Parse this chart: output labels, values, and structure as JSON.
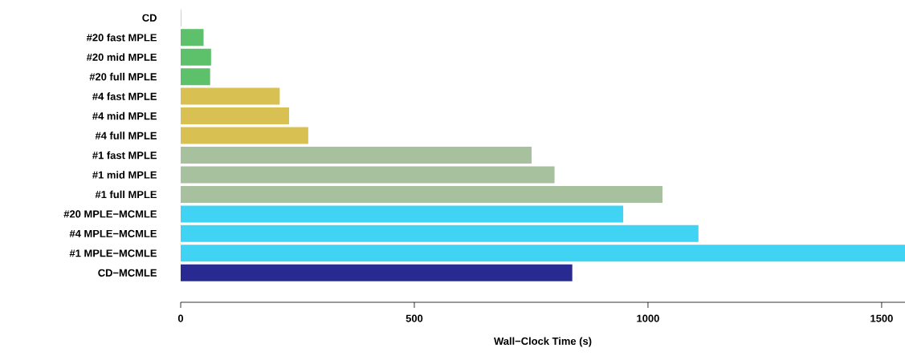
{
  "chart_data": {
    "type": "bar",
    "orientation": "horizontal",
    "xlabel": "Wall−Clock Time (s)",
    "categories": [
      "CD",
      "#20 fast MPLE",
      "#20 mid MPLE",
      "#20   full MPLE",
      "#4 fast MPLE",
      "#4 mid MPLE",
      "#4   full MPLE",
      "#1 fast MPLE",
      "#1 mid MPLE",
      "#1   full MPLE",
      "#20 MPLE−MCMLE",
      "#4 MPLE−MCMLE",
      "#1 MPLE−MCMLE",
      "CD−MCMLE"
    ],
    "values": [
      1,
      49,
      65,
      63,
      212,
      232,
      273,
      751,
      800,
      1031,
      947,
      1108,
      1550,
      838
    ],
    "colors": [
      "#e8a05a",
      "#5cc16a",
      "#5cc16a",
      "#5cc16a",
      "#d9c053",
      "#d9c053",
      "#d9c053",
      "#a7c09d",
      "#a7c09d",
      "#a7c09d",
      "#41d3f4",
      "#41d3f4",
      "#41d3f4",
      "#282a92"
    ],
    "xlim": [
      0,
      1550
    ],
    "xticks": [
      0,
      500,
      1000,
      1500
    ],
    "grid": false
  }
}
